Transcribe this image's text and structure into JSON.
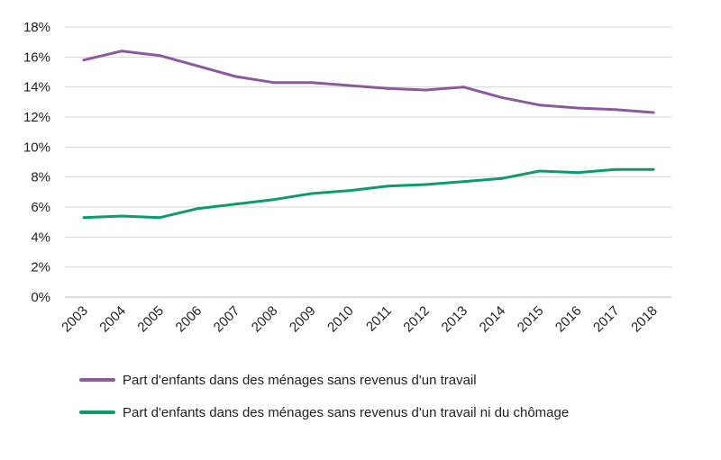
{
  "chart_data": {
    "type": "line",
    "categories": [
      "2003",
      "2004",
      "2005",
      "2006",
      "2007",
      "2008",
      "2009",
      "2010",
      "2011",
      "2012",
      "2013",
      "2014",
      "2015",
      "2016",
      "2017",
      "2018"
    ],
    "series": [
      {
        "name": "Part d'enfants dans des ménages sans revenus d'un travail",
        "color": "#8a5a9a",
        "values": [
          15.8,
          16.4,
          16.1,
          15.4,
          14.7,
          14.3,
          14.3,
          14.1,
          13.9,
          13.8,
          14.0,
          13.3,
          12.8,
          12.6,
          12.5,
          12.3
        ]
      },
      {
        "name": "Part d'enfants dans des ménages sans revenus d'un travail ni du chômage",
        "color": "#0f9a6e",
        "values": [
          5.3,
          5.4,
          5.3,
          5.9,
          6.2,
          6.5,
          6.9,
          7.1,
          7.4,
          7.5,
          7.7,
          7.9,
          8.4,
          8.3,
          8.5,
          8.5
        ]
      }
    ],
    "y_ticks": [
      "0%",
      "2%",
      "4%",
      "6%",
      "8%",
      "10%",
      "12%",
      "14%",
      "16%",
      "18%"
    ],
    "ylim": [
      0,
      18
    ],
    "grid": true,
    "legend_position": "bottom-left",
    "title": "",
    "xlabel": "",
    "ylabel": ""
  }
}
